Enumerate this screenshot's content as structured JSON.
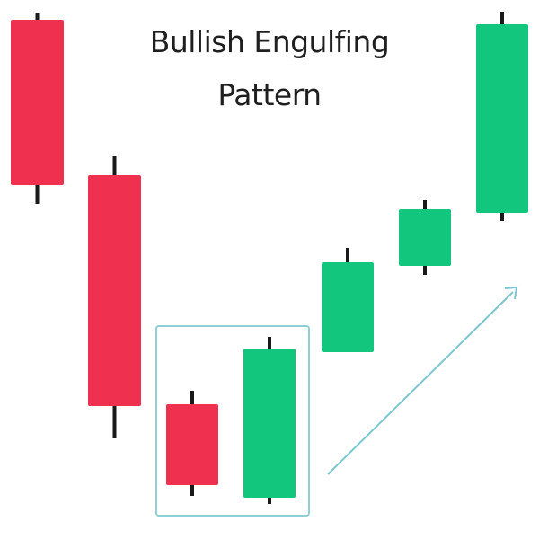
{
  "title": {
    "line1": "Bullish Engulfing",
    "line2": "Pattern"
  },
  "colors": {
    "bearish": "#f0304f",
    "bullish": "#12c77d",
    "wick": "#1a1a1a",
    "highlight_box": "#8fd0d4",
    "trend_arrow": "#7cc6d0",
    "background": "#ffffff"
  },
  "candles": [
    {
      "direction": "bearish",
      "role": "downtrend"
    },
    {
      "direction": "bearish",
      "role": "downtrend"
    },
    {
      "direction": "bearish",
      "role": "engulfed"
    },
    {
      "direction": "bullish",
      "role": "engulfing"
    },
    {
      "direction": "bullish",
      "role": "uptrend"
    },
    {
      "direction": "bullish",
      "role": "uptrend"
    },
    {
      "direction": "bullish",
      "role": "uptrend"
    }
  ]
}
